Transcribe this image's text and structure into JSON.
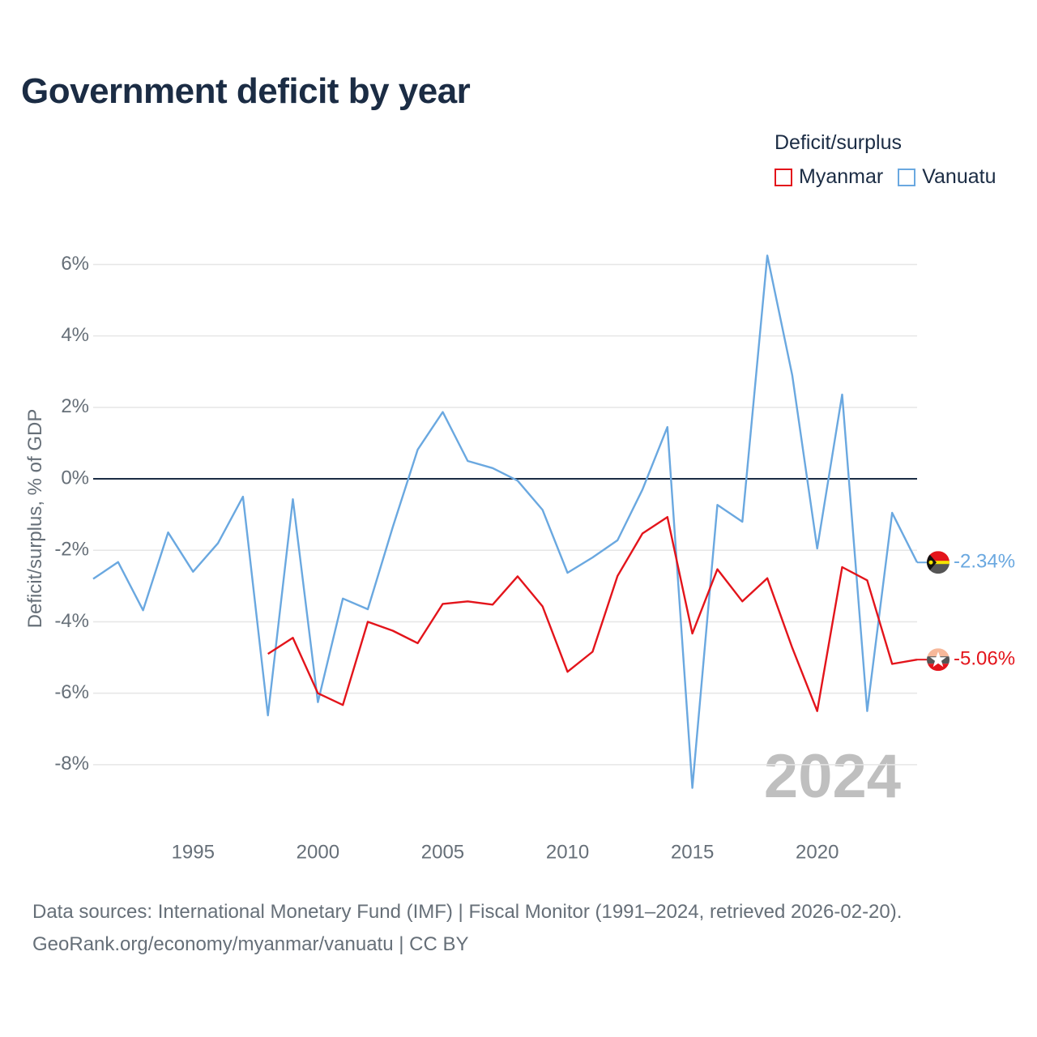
{
  "title": "Government deficit by year",
  "legend": {
    "title": "Deficit/surplus",
    "items": [
      {
        "label": "Myanmar",
        "color": "#e3141b"
      },
      {
        "label": "Vanuatu",
        "color": "#6aa8e0"
      }
    ]
  },
  "watermark_year": "2024",
  "footer": {
    "line1": "Data sources: International Monetary Fund (IMF) | Fiscal Monitor (1991–2024, retrieved 2026-02-20).",
    "line2": "GeoRank.org/economy/myanmar/vanuatu | CC BY"
  },
  "chart_data": {
    "type": "line",
    "title": "Government deficit by year",
    "xlabel": "",
    "ylabel": "Deficit/surplus, % of GDP",
    "xlim": [
      1991,
      2024
    ],
    "ylim": [
      -9.5,
      6.6
    ],
    "x_ticks": [
      1995,
      2000,
      2005,
      2010,
      2015,
      2020
    ],
    "y_ticks": [
      6,
      4,
      2,
      0,
      -2,
      -4,
      -6,
      -8
    ],
    "y_tick_labels": [
      "6%",
      "4%",
      "2%",
      "0%",
      "-2%",
      "-4%",
      "-6%",
      "-8%"
    ],
    "series": [
      {
        "name": "Myanmar",
        "color": "#e3141b",
        "x": [
          1998,
          1999,
          2000,
          2001,
          2002,
          2003,
          2004,
          2005,
          2006,
          2007,
          2008,
          2009,
          2010,
          2011,
          2012,
          2013,
          2014,
          2015,
          2016,
          2017,
          2018,
          2019,
          2020,
          2021,
          2022,
          2023,
          2024
        ],
        "values": [
          -4.9,
          -4.45,
          -6.0,
          -6.33,
          -4.0,
          -4.25,
          -4.6,
          -3.5,
          -3.43,
          -3.52,
          -2.73,
          -3.57,
          -5.4,
          -4.84,
          -2.72,
          -1.53,
          -1.07,
          -4.33,
          -2.53,
          -3.43,
          -2.78,
          -4.73,
          -6.5,
          -2.47,
          -2.84,
          -5.18,
          -5.06
        ],
        "end_label": "-5.06%"
      },
      {
        "name": "Vanuatu",
        "color": "#6aa8e0",
        "x": [
          1991,
          1992,
          1993,
          1994,
          1995,
          1996,
          1997,
          1998,
          1999,
          2000,
          2001,
          2002,
          2003,
          2004,
          2005,
          2006,
          2007,
          2008,
          2009,
          2010,
          2011,
          2012,
          2013,
          2014,
          2015,
          2016,
          2017,
          2018,
          2019,
          2020,
          2021,
          2022,
          2023,
          2024
        ],
        "values": [
          -2.8,
          -2.33,
          -3.68,
          -1.5,
          -2.6,
          -1.8,
          -0.5,
          -6.62,
          -0.57,
          -6.25,
          -3.35,
          -3.65,
          -1.35,
          0.82,
          1.87,
          0.5,
          0.3,
          -0.05,
          -0.87,
          -2.63,
          -2.2,
          -1.72,
          -0.3,
          1.45,
          -8.65,
          -0.73,
          -1.2,
          6.25,
          2.9,
          -1.95,
          2.36,
          -6.5,
          -0.95,
          -2.34
        ],
        "end_label": "-2.34%"
      }
    ]
  }
}
